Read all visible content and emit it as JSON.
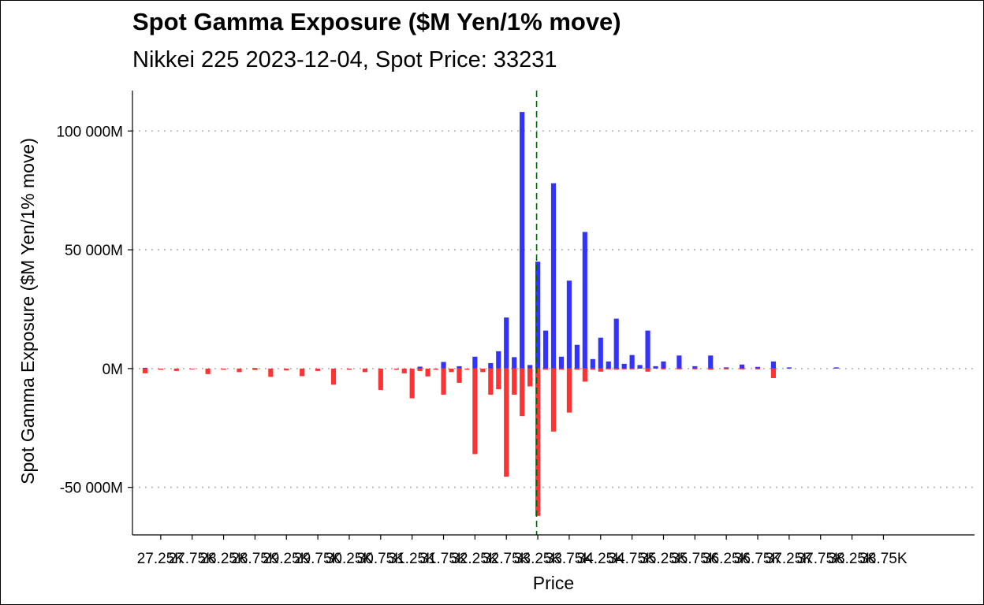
{
  "title": "Spot Gamma Exposure ($M Yen/1% move)",
  "subtitle": "Nikkei 225 2023-12-04, Spot Price: 33231",
  "chart_data": {
    "type": "bar",
    "xlabel": "Price",
    "ylabel": "Spot Gamma Exposure ($M Yen/1% move)",
    "ylim": [
      -70000,
      117000
    ],
    "yticks": [
      -50000,
      0,
      50000,
      100000
    ],
    "ytick_labels": [
      "-50 000M",
      "0M",
      "50 000M",
      "100 000M"
    ],
    "xlim": [
      26800,
      40200
    ],
    "xticks": [
      27250,
      27750,
      28250,
      28750,
      29250,
      29750,
      30250,
      30750,
      31250,
      31750,
      32250,
      32750,
      33250,
      33750,
      34250,
      34750,
      35250,
      35750,
      36250,
      36750,
      37250,
      37750,
      38250,
      38750
    ],
    "xtick_labels": [
      "27.25K",
      "27.75K",
      "28.25K",
      "28.75K",
      "29.25K",
      "29.75K",
      "30.25K",
      "30.75K",
      "31.25K",
      "31.75K",
      "32.25K",
      "32.75K",
      "33.25K",
      "33.75K",
      "34.25K",
      "34.75K",
      "35.25K",
      "35.75K",
      "36.25K",
      "36.75K",
      "37.25K",
      "37.75K",
      "38.25K",
      "38.75K"
    ],
    "spot_price": 33231,
    "grid": "horizontal dotted",
    "colors": {
      "calls": "#3333ff",
      "puts": "#ff3333",
      "spot_line": "#006400",
      "grid": "#bfbfbf"
    },
    "series": [
      {
        "kind": "calls",
        "x": [
          27000,
          28750,
          31375,
          31750,
          32000,
          32250,
          32500,
          32625,
          32750,
          32875,
          33000,
          33125,
          33250,
          33375,
          33500,
          33625,
          33750,
          33875,
          34000,
          34125,
          34250,
          34375,
          34500,
          34625,
          34750,
          34875,
          35000,
          35125,
          35250,
          35500,
          35750,
          36000,
          36250,
          36500,
          36750,
          37000,
          37250,
          38000
        ],
        "values": [
          300,
          200,
          800,
          2800,
          1000,
          5000,
          2300,
          7300,
          21500,
          4800,
          108000,
          1500,
          45000,
          16000,
          78000,
          5000,
          37000,
          10000,
          57500,
          4000,
          13000,
          3000,
          21000,
          2000,
          5700,
          1500,
          16000,
          1000,
          3000,
          5500,
          1000,
          5500,
          500,
          1700,
          700,
          3000,
          500,
          500
        ]
      },
      {
        "kind": "puts",
        "x": [
          27000,
          27250,
          27500,
          27750,
          28000,
          28250,
          28500,
          28750,
          29000,
          29250,
          29500,
          29750,
          30000,
          30250,
          30500,
          30750,
          31000,
          31125,
          31250,
          31375,
          31500,
          31625,
          31750,
          31875,
          32000,
          32125,
          32250,
          32375,
          32500,
          32625,
          32750,
          32875,
          33000,
          33125,
          33250,
          33375,
          33500,
          33625,
          33750,
          33875,
          34000,
          34125,
          34250,
          34375,
          34500,
          34625,
          34750,
          35000,
          35250,
          35500,
          35750,
          36000,
          36250,
          36500,
          36750,
          37000
        ],
        "values": [
          -2000,
          -500,
          -1000,
          -300,
          -2300,
          -500,
          -1500,
          -600,
          -3500,
          -800,
          -3200,
          -1000,
          -6800,
          -500,
          -1500,
          -9000,
          -500,
          -2000,
          -12500,
          -1000,
          -3300,
          -500,
          -11000,
          -1500,
          -6000,
          -500,
          -36000,
          -1500,
          -11000,
          -8700,
          -45500,
          -11000,
          -20000,
          -7500,
          -62000,
          -500,
          -26500,
          -500,
          -18500,
          -500,
          -5500,
          -500,
          -1300,
          -300,
          -500,
          -200,
          -300,
          -1300,
          -300,
          -200,
          -300,
          -500,
          -200,
          -100,
          -100,
          -4000
        ]
      }
    ]
  }
}
